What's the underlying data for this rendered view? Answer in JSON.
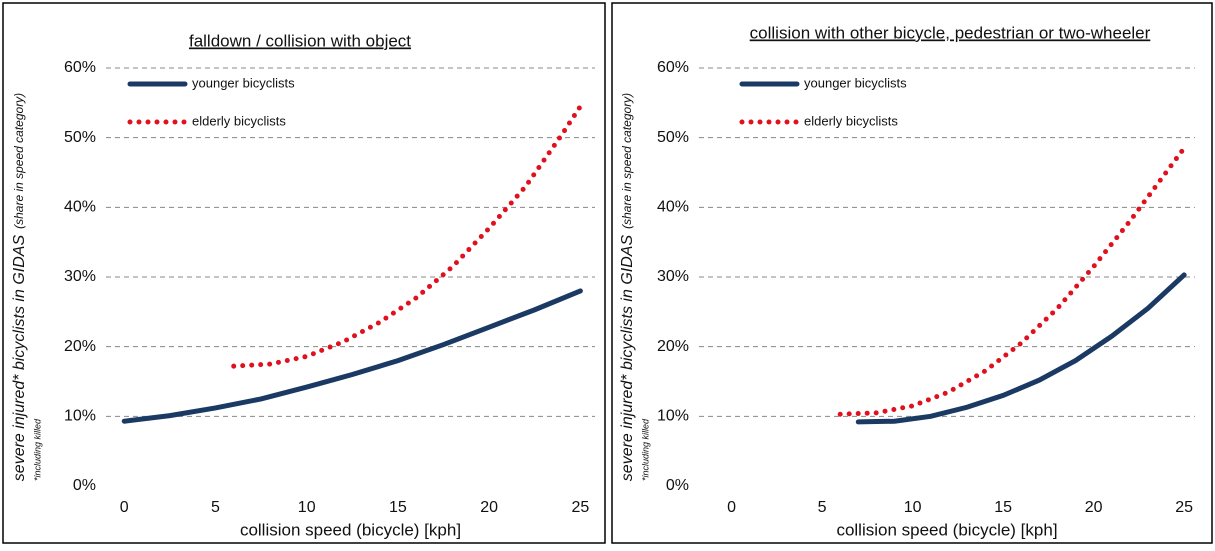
{
  "chart_data": [
    {
      "type": "line",
      "title": "falldown / collision with object",
      "ylabel": "severe injured* bicyclists in GIDAS",
      "ylabel_note": "(share in speed category)",
      "footnote": "*including killed",
      "xlabel": "collision speed (bicycle) [kph]",
      "xlim": [
        -1,
        25.8
      ],
      "xticks": [
        0,
        5,
        10,
        15,
        20,
        25
      ],
      "ylim": [
        0,
        60
      ],
      "yticks": [
        {
          "value": 0,
          "label": "0%"
        },
        {
          "value": 10,
          "label": "10%"
        },
        {
          "value": 20,
          "label": "20%"
        },
        {
          "value": 30,
          "label": "30%"
        },
        {
          "value": 40,
          "label": "40%"
        },
        {
          "value": 50,
          "label": "50%"
        },
        {
          "value": 60,
          "label": "60%"
        }
      ],
      "grid": true,
      "series": [
        {
          "name": "younger bicyclists",
          "color": "#1b3a63",
          "style": "solid",
          "x": [
            0,
            2.5,
            5,
            7.5,
            10,
            12.5,
            15,
            17.5,
            20,
            22.5,
            25
          ],
          "values": [
            9.3,
            10.1,
            11.2,
            12.5,
            14.2,
            16,
            18,
            20.3,
            22.8,
            25.3,
            28
          ]
        },
        {
          "name": "elderly bicyclists",
          "color": "#e0101e",
          "style": "dotted",
          "x": [
            6,
            8,
            10,
            12,
            14,
            16,
            18,
            20,
            22,
            24,
            25
          ],
          "values": [
            17.2,
            17.5,
            18.6,
            20.7,
            23.5,
            27,
            31.5,
            37,
            43,
            50.5,
            54.5
          ]
        }
      ]
    },
    {
      "type": "line",
      "title": "collision with other bicycle, pedestrian or two-wheeler",
      "ylabel": "severe injured* bicyclists in GIDAS",
      "ylabel_note": "(share in speed category)",
      "footnote": "*including killed",
      "xlabel": "collision speed (bicycle) [kph]",
      "xlim": [
        -1.8,
        25.6
      ],
      "xticks": [
        0,
        5,
        10,
        15,
        20,
        25
      ],
      "ylim": [
        0,
        60
      ],
      "yticks": [
        {
          "value": 0,
          "label": "0%"
        },
        {
          "value": 10,
          "label": "10%"
        },
        {
          "value": 20,
          "label": "20%"
        },
        {
          "value": 30,
          "label": "30%"
        },
        {
          "value": 40,
          "label": "40%"
        },
        {
          "value": 50,
          "label": "50%"
        },
        {
          "value": 60,
          "label": "60%"
        }
      ],
      "grid": true,
      "series": [
        {
          "name": "younger bicyclists",
          "color": "#1b3a63",
          "style": "solid",
          "x": [
            7,
            9,
            11,
            13,
            15,
            17,
            19,
            21,
            23,
            25
          ],
          "values": [
            9.2,
            9.3,
            10,
            11.3,
            13,
            15.2,
            18,
            21.5,
            25.5,
            30.3
          ]
        },
        {
          "name": "elderly bicyclists",
          "color": "#e0101e",
          "style": "dotted",
          "x": [
            6,
            8,
            10,
            12,
            14,
            16,
            18,
            20,
            22,
            24,
            25
          ],
          "values": [
            10.3,
            10.5,
            11.5,
            13.5,
            16.5,
            20.5,
            25.5,
            31.5,
            38,
            45,
            48.5
          ]
        }
      ]
    }
  ]
}
